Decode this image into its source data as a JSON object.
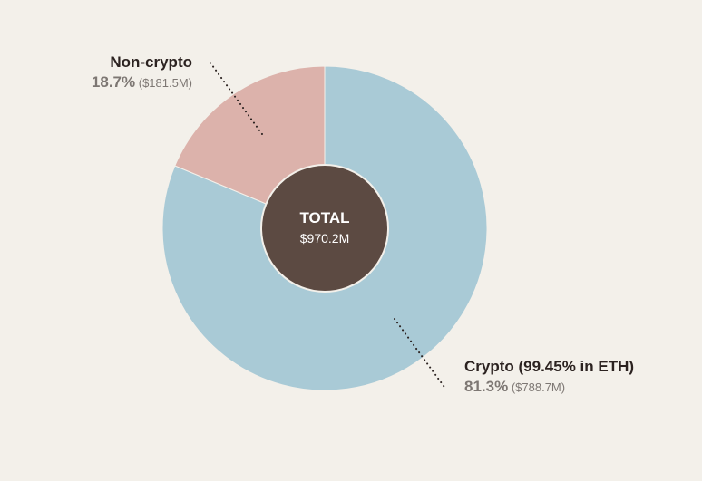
{
  "chart_data": {
    "type": "pie",
    "categories": [
      "Crypto (99.45% in ETH)",
      "Non-crypto"
    ],
    "values": [
      81.3,
      18.7
    ],
    "amounts": [
      "$788.7M",
      "$181.5M"
    ],
    "percent_labels": [
      "81.3%",
      "18.7%"
    ],
    "amount_labels": [
      "($788.7M)",
      "($181.5M)"
    ],
    "colors": [
      "#a9cad6",
      "#dcb2ab"
    ],
    "center_color": "#5c4a42",
    "center_title": "TOTAL",
    "center_value": "$970.2M",
    "donut": true
  }
}
